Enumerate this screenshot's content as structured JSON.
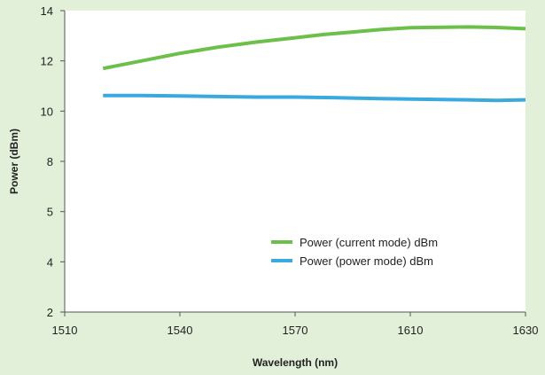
{
  "chart_data": {
    "type": "line",
    "title": "",
    "xlabel": "Wavelength (nm)",
    "ylabel": "Power (dBm)",
    "xlim": [
      1510,
      1630
    ],
    "ylim": [
      2,
      14
    ],
    "x_ticks": [
      "1510",
      "1540",
      "1570",
      "1610",
      "1630"
    ],
    "y_ticks": [
      "2",
      "4",
      "5",
      "8",
      "10",
      "12",
      "14"
    ],
    "grid": false,
    "legend_position": "bottom-center",
    "series": [
      {
        "name": "Power (current mode) dBm",
        "color": "#6cc04a",
        "points": [
          [
            1520,
            11.7
          ],
          [
            1530,
            12.0
          ],
          [
            1540,
            12.3
          ],
          [
            1550,
            12.55
          ],
          [
            1560,
            12.75
          ],
          [
            1570,
            12.92
          ],
          [
            1580,
            13.05
          ],
          [
            1590,
            13.15
          ],
          [
            1600,
            13.25
          ],
          [
            1610,
            13.32
          ],
          [
            1620,
            13.35
          ],
          [
            1625,
            13.33
          ],
          [
            1630,
            13.28
          ]
        ]
      },
      {
        "name": "Power (power mode) dBm",
        "color": "#3aa9de",
        "points": [
          [
            1520,
            10.62
          ],
          [
            1530,
            10.62
          ],
          [
            1540,
            10.6
          ],
          [
            1550,
            10.58
          ],
          [
            1560,
            10.56
          ],
          [
            1570,
            10.56
          ],
          [
            1580,
            10.54
          ],
          [
            1590,
            10.52
          ],
          [
            1600,
            10.5
          ],
          [
            1610,
            10.48
          ],
          [
            1620,
            10.45
          ],
          [
            1625,
            10.43
          ],
          [
            1630,
            10.45
          ]
        ]
      }
    ]
  }
}
